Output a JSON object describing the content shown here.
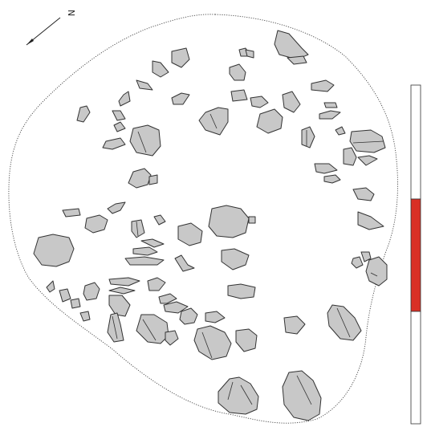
{
  "north_arrow": {
    "label": "N"
  },
  "scale_bar": {
    "segments": 3,
    "colors": [
      "#ffffff",
      "#d93025",
      "#ffffff"
    ]
  },
  "colors": {
    "stone_fill": "#c8c8c8",
    "stroke": "#333333",
    "scale_accent": "#d93025"
  }
}
